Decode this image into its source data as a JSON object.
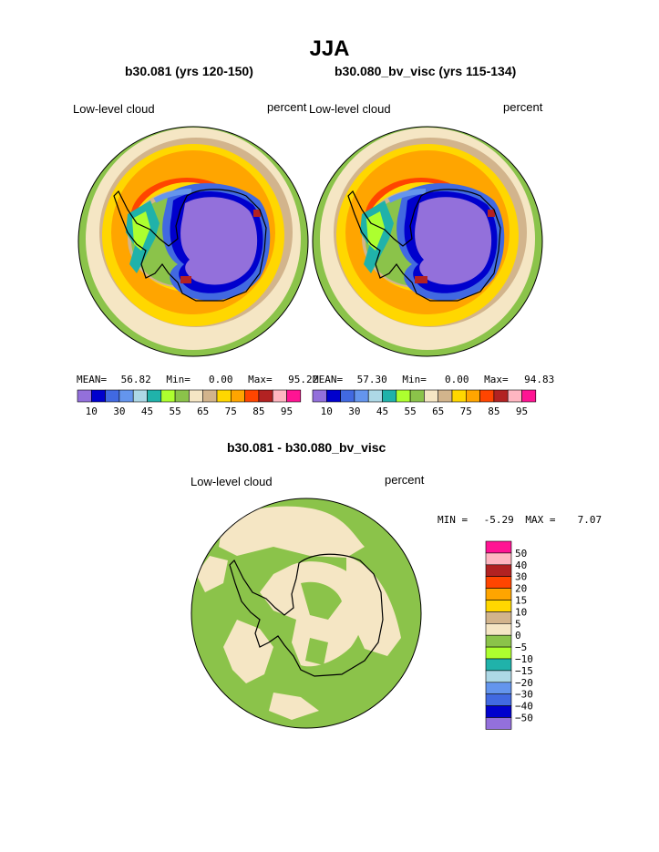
{
  "title": "JJA",
  "palette": {
    "colors": [
      "#9370db",
      "#0000cd",
      "#4169e1",
      "#6495ed",
      "#add8e6",
      "#20b2aa",
      "#adff2f",
      "#8bc34a",
      "#f5e6c4",
      "#d2b48c",
      "#ffd700",
      "#ffa500",
      "#ff4500",
      "#b22222",
      "#ffb6c1",
      "#ff1493"
    ]
  },
  "chart_data": [
    {
      "type": "heatmap",
      "panel": "b30.081",
      "title": "b30.081 (yrs 120-150)",
      "left_label": "Low-level cloud",
      "right_label": "percent",
      "stats": {
        "mean_label": "MEAN=",
        "mean": "56.82",
        "min_label": "Min=",
        "min": "0.00",
        "max_label": "Max=",
        "max": "95.22"
      },
      "colorbar_ticks": [
        "10",
        "30",
        "45",
        "55",
        "65",
        "75",
        "85",
        "95"
      ]
    },
    {
      "type": "heatmap",
      "panel": "b30.080_bv_visc",
      "title": "b30.080_bv_visc (yrs 115-134)",
      "left_label": "Low-level cloud",
      "right_label": "percent",
      "stats": {
        "mean_label": "MEAN=",
        "mean": "57.30",
        "min_label": "Min=",
        "min": "0.00",
        "max_label": "Max=",
        "max": "94.83"
      },
      "colorbar_ticks": [
        "10",
        "30",
        "45",
        "55",
        "65",
        "75",
        "85",
        "95"
      ]
    },
    {
      "type": "heatmap",
      "panel": "difference",
      "title": "b30.081 - b30.080_bv_visc",
      "left_label": "Low-level cloud",
      "right_label": "percent",
      "stats": {
        "min_label": "MIN =",
        "min": "-5.29",
        "max_label": "MAX =",
        "max": "7.07"
      },
      "colorbar_ticks": [
        "50",
        "40",
        "30",
        "20",
        "15",
        "10",
        "5",
        "0",
        "−5",
        "−10",
        "−15",
        "−20",
        "−30",
        "−40",
        "−50"
      ],
      "colorbar_colors": [
        "#ff1493",
        "#ffb6c1",
        "#b22222",
        "#ff4500",
        "#ffa500",
        "#ffd700",
        "#d2b48c",
        "#f5e6c4",
        "#8bc34a",
        "#adff2f",
        "#20b2aa",
        "#add8e6",
        "#6495ed",
        "#4169e1",
        "#0000cd",
        "#9370db"
      ]
    }
  ]
}
